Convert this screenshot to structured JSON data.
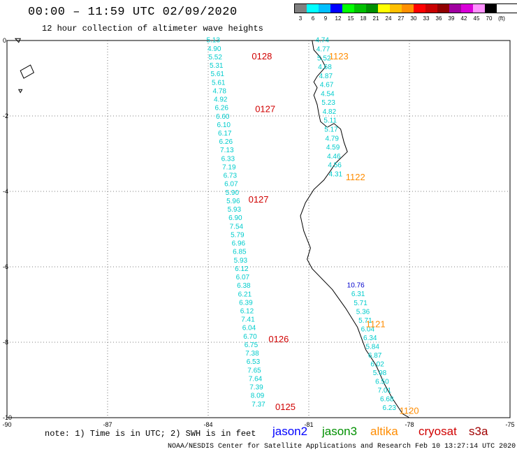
{
  "header": {
    "title": "00:00 – 11:59 UTC 02/09/2020",
    "subtitle": "12 hour collection of altimeter wave heights"
  },
  "legend": {
    "ticks": [
      "3",
      "6",
      "9",
      "12",
      "15",
      "18",
      "21",
      "24",
      "27",
      "30",
      "33",
      "36",
      "39",
      "42",
      "45",
      "70",
      "(ft)"
    ],
    "colors": [
      "#808080",
      "#00ffff",
      "#00bfff",
      "#0000ff",
      "#00ff00",
      "#00c000",
      "#009000",
      "#ffff00",
      "#ffc000",
      "#ff9000",
      "#ff0000",
      "#c80000",
      "#900000",
      "#a000a0",
      "#d800d8",
      "#ff90ff",
      "#000000"
    ]
  },
  "map": {
    "x_range": [
      -90,
      -75
    ],
    "y_range": [
      -10,
      0
    ],
    "x_ticks": [
      -90,
      -87,
      -84,
      -81,
      -78,
      -75
    ],
    "y_ticks": [
      0,
      -2,
      -4,
      -6,
      -8,
      -10
    ],
    "x_tick_labels": [
      "-90",
      "-87",
      "-84",
      "-81",
      "-78",
      "-75"
    ],
    "y_tick_labels": [
      "0",
      "-2",
      "-4",
      "-6",
      "-8",
      "-10"
    ],
    "grid": "dotted"
  },
  "tracks": [
    {
      "satellite": "cryosat",
      "color": "#00cccc",
      "values": [
        "5.13",
        "4.90",
        "5.52",
        "5.31",
        "5.61",
        "5.61",
        "4.78",
        "4.92",
        "6.26",
        "6.60",
        "6.10",
        "6.17",
        "6.26",
        "7.13",
        "6.33",
        "7.19",
        "6.73",
        "6.07",
        "5.90",
        "5.96",
        "5.93",
        "6.90",
        "7.54",
        "5.79",
        "6.96",
        "6.85",
        "5.93",
        "6.12",
        "6.07",
        "6.38",
        "6.21",
        "6.39",
        "6.12",
        "7.41",
        "6.04",
        "6.70",
        "6.75",
        "7.38",
        "6.53",
        "7.65",
        "7.64",
        "7.39",
        "8.09",
        "7.37"
      ],
      "time_labels": [
        {
          "text": "0128",
          "lon": -82.7,
          "lat": -0.5
        },
        {
          "text": "0127",
          "lon": -82.6,
          "lat": -1.9
        },
        {
          "text": "0127",
          "lon": -82.8,
          "lat": -4.3
        },
        {
          "text": "0126",
          "lon": -82.2,
          "lat": -8.0
        },
        {
          "text": "0125",
          "lon": -82.0,
          "lat": -9.8
        }
      ],
      "time_color": "#d00000"
    },
    {
      "satellite": "altika",
      "color": "#00cccc",
      "values": [
        "4.74",
        "4.77",
        "5.52",
        "4.68",
        "4.87",
        "4.67",
        "4.54",
        "5.23",
        "4.82",
        "5.11",
        "5.17",
        "4.79",
        "4.59",
        "4.46",
        "4.56",
        "4.31"
      ],
      "time_labels": [
        {
          "text": "1123",
          "lon": -80.4,
          "lat": -0.5
        },
        {
          "text": "1122",
          "lon": -79.9,
          "lat": -3.7
        }
      ],
      "time_color": "#ff8c00"
    },
    {
      "satellite": "altika",
      "color": "#00cccc",
      "first_value": "10.76",
      "first_color": "#0000cc",
      "values": [
        "6.31",
        "5.71",
        "5.36",
        "5.71",
        "6.04",
        "6.34",
        "5.84",
        "6.87",
        "6.02",
        "5.98",
        "6.50",
        "7.01",
        "6.68",
        "6.23"
      ],
      "time_labels": [
        {
          "text": "1121",
          "lon": -79.3,
          "lat": -7.6
        },
        {
          "text": "1120",
          "lon": -78.3,
          "lat": -9.9
        }
      ],
      "time_color": "#ff8c00"
    }
  ],
  "footer": {
    "note": "note:  1) Time is in UTC;  2) SWH is in feet",
    "satellites": [
      {
        "name": "jason2",
        "color": "#0000ff"
      },
      {
        "name": "jason3",
        "color": "#009000"
      },
      {
        "name": "altika",
        "color": "#ff8c00"
      },
      {
        "name": "cryosat",
        "color": "#d00000"
      },
      {
        "name": "s3a",
        "color": "#a00000"
      }
    ],
    "credit": "NOAA/NESDIS Center for Satellite Applications and Research    Feb 10 13:27:14 UTC 2020"
  }
}
